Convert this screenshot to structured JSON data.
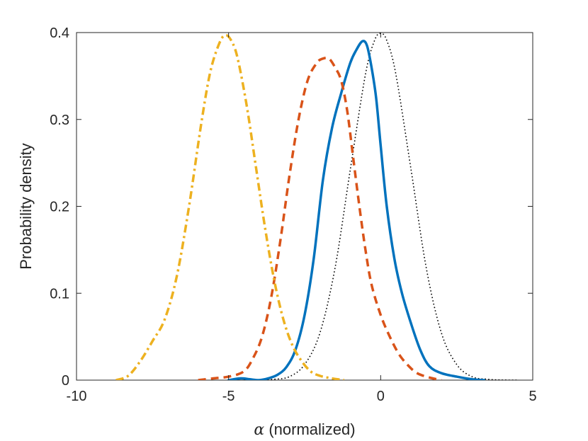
{
  "chart_data": {
    "type": "line",
    "title": "",
    "xlabel_symbol": "α",
    "xlabel_text": " (normalized)",
    "ylabel": "Probability density",
    "xlim": [
      -10,
      5
    ],
    "ylim": [
      0,
      0.4
    ],
    "xticks": [
      {
        "value": -10,
        "label": "-10"
      },
      {
        "value": -5,
        "label": "-5"
      },
      {
        "value": 0,
        "label": "0"
      },
      {
        "value": 5,
        "label": "5"
      }
    ],
    "yticks": [
      {
        "value": 0,
        "label": "0"
      },
      {
        "value": 0.1,
        "label": "0.1"
      },
      {
        "value": 0.2,
        "label": "0.2"
      },
      {
        "value": 0.3,
        "label": "0.3"
      },
      {
        "value": 0.4,
        "label": "0.4"
      }
    ],
    "grid": false,
    "legend": "none",
    "series": [
      {
        "name": "dotted-reference",
        "color": "#000000",
        "style": "dotted",
        "x": [
          -4.5,
          -4.0,
          -3.5,
          -3.0,
          -2.5,
          -2.0,
          -1.5,
          -1.0,
          -0.5,
          -0.2,
          0.0,
          0.2,
          0.5,
          1.0,
          1.5,
          2.0,
          2.5,
          3.0,
          3.5,
          4.0,
          4.5
        ],
        "y": [
          0.0,
          0.0001,
          0.001,
          0.004,
          0.018,
          0.054,
          0.129,
          0.242,
          0.352,
          0.391,
          0.399,
          0.391,
          0.352,
          0.242,
          0.129,
          0.054,
          0.018,
          0.004,
          0.001,
          0.0001,
          0.0
        ]
      },
      {
        "name": "solid-blue",
        "color": "#0072BD",
        "style": "solid",
        "x": [
          -5.0,
          -4.6,
          -4.3,
          -4.0,
          -3.7,
          -3.4,
          -3.1,
          -2.8,
          -2.5,
          -2.2,
          -1.9,
          -1.6,
          -1.3,
          -1.0,
          -0.8,
          -0.6,
          -0.45,
          -0.3,
          -0.15,
          0.0,
          0.2,
          0.45,
          0.7,
          1.0,
          1.3,
          1.6,
          2.0,
          2.5,
          3.0,
          3.4
        ],
        "y": [
          0.0,
          0.002,
          0.001,
          0.0,
          0.002,
          0.006,
          0.015,
          0.035,
          0.075,
          0.14,
          0.23,
          0.29,
          0.33,
          0.365,
          0.38,
          0.39,
          0.385,
          0.36,
          0.325,
          0.27,
          0.2,
          0.14,
          0.1,
          0.065,
          0.035,
          0.016,
          0.008,
          0.004,
          0.001,
          0.0
        ]
      },
      {
        "name": "dashed-orange",
        "color": "#D95319",
        "style": "dashed",
        "x": [
          -6.0,
          -5.5,
          -5.0,
          -4.5,
          -4.2,
          -3.9,
          -3.6,
          -3.3,
          -3.0,
          -2.7,
          -2.4,
          -2.1,
          -1.9,
          -1.7,
          -1.5,
          -1.3,
          -1.1,
          -0.9,
          -0.7,
          -0.5,
          -0.3,
          0.0,
          0.3,
          0.6,
          0.9,
          1.2,
          1.6,
          2.0
        ],
        "y": [
          0.0,
          0.002,
          0.004,
          0.01,
          0.025,
          0.05,
          0.095,
          0.16,
          0.235,
          0.3,
          0.345,
          0.365,
          0.37,
          0.37,
          0.36,
          0.345,
          0.31,
          0.255,
          0.2,
          0.15,
          0.11,
          0.075,
          0.05,
          0.03,
          0.017,
          0.008,
          0.003,
          0.0
        ]
      },
      {
        "name": "dashdot-yellow",
        "color": "#EDB120",
        "style": "dashdot",
        "x": [
          -8.7,
          -8.3,
          -7.9,
          -7.5,
          -7.1,
          -6.7,
          -6.3,
          -5.9,
          -5.6,
          -5.3,
          -5.1,
          -4.9,
          -4.7,
          -4.4,
          -4.1,
          -3.8,
          -3.5,
          -3.2,
          -2.9,
          -2.6,
          -2.3,
          -2.0,
          -1.6,
          -1.2
        ],
        "y": [
          0.0,
          0.005,
          0.022,
          0.045,
          0.07,
          0.12,
          0.2,
          0.295,
          0.355,
          0.388,
          0.397,
          0.39,
          0.37,
          0.315,
          0.245,
          0.175,
          0.115,
          0.07,
          0.04,
          0.022,
          0.01,
          0.005,
          0.002,
          0.0
        ]
      }
    ]
  }
}
